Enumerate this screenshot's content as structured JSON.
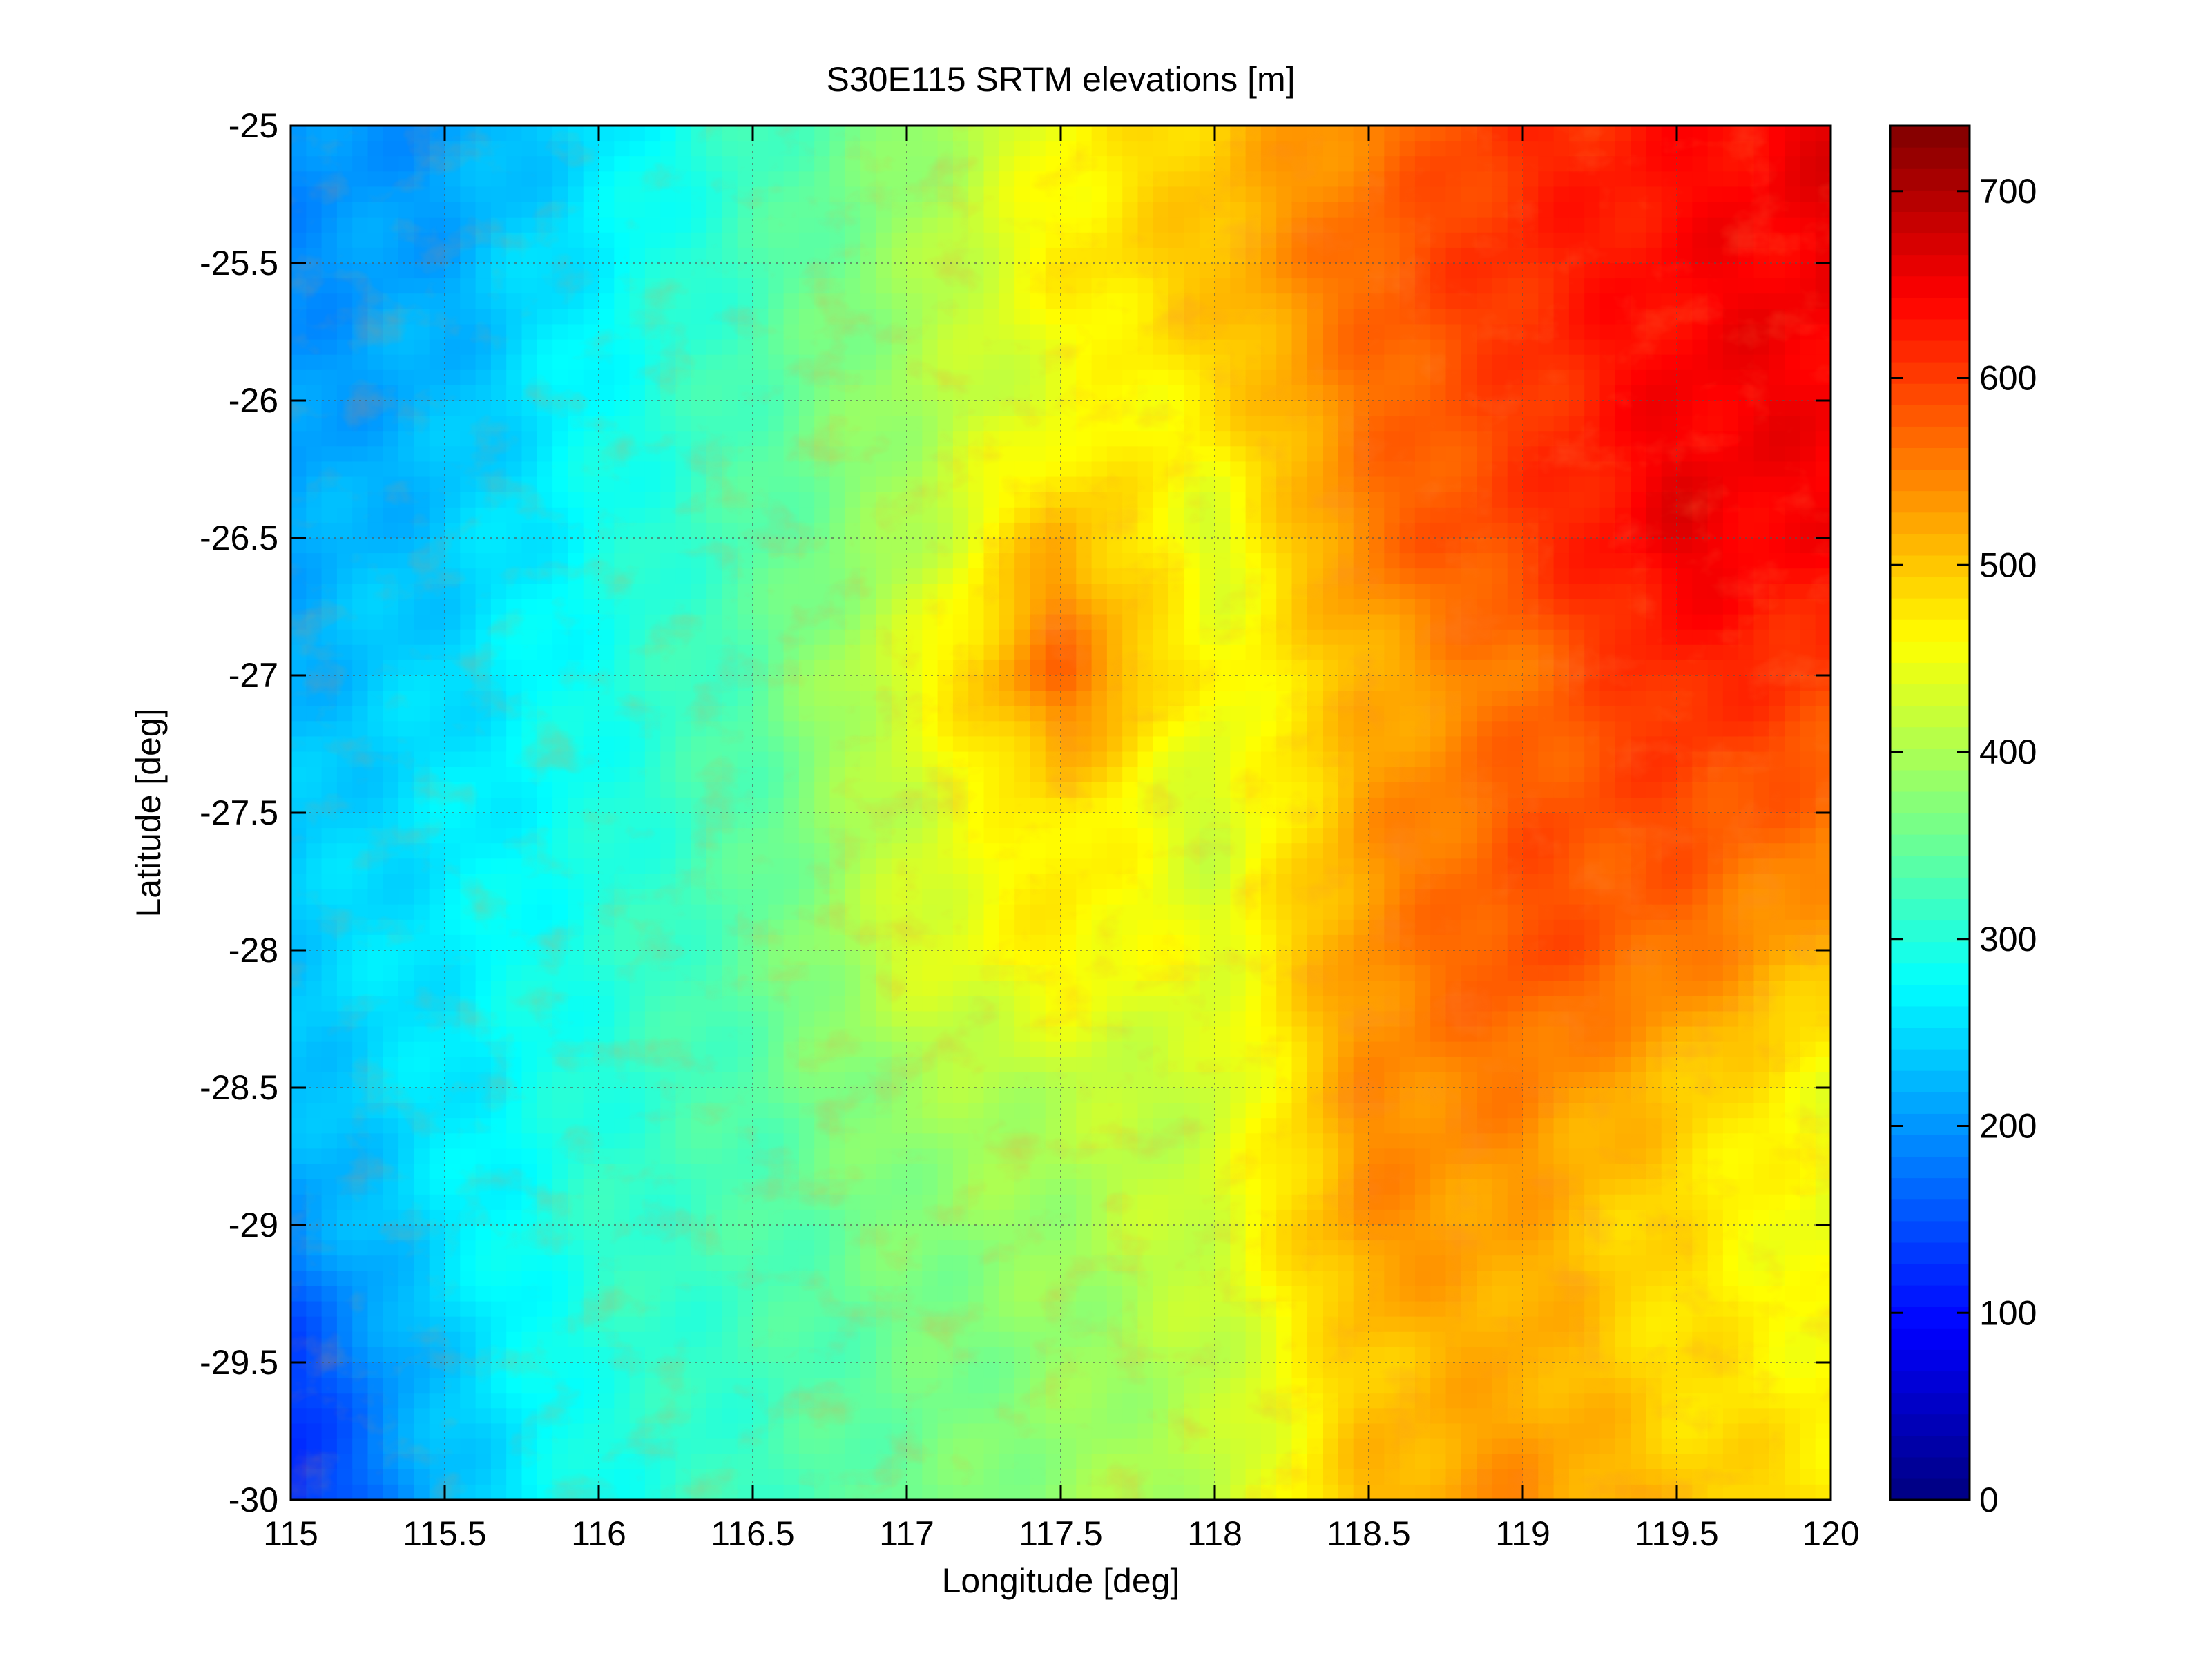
{
  "chart_data": {
    "type": "heatmap",
    "title": "S30E115 SRTM elevations [m]",
    "xlabel": "Longitude [deg]",
    "ylabel": "Latitude [deg]",
    "xlim": [
      115,
      120
    ],
    "ylim": [
      -30,
      -25
    ],
    "x_ticks": [
      "115",
      "115.5",
      "116",
      "116.5",
      "117",
      "117.5",
      "118",
      "118.5",
      "119",
      "119.5",
      "120"
    ],
    "x_tick_values": [
      115,
      115.5,
      116,
      116.5,
      117,
      117.5,
      118,
      118.5,
      119,
      119.5,
      120
    ],
    "y_ticks": [
      "-25",
      "-25.5",
      "-26",
      "-26.5",
      "-27",
      "-27.5",
      "-28",
      "-28.5",
      "-29",
      "-29.5",
      "-30"
    ],
    "y_tick_values": [
      -25,
      -25.5,
      -26,
      -26.5,
      -27,
      -27.5,
      -28,
      -28.5,
      -29,
      -29.5,
      -30
    ],
    "grid": true,
    "colormap": "jet",
    "colorbar": {
      "min": 0,
      "max": 735,
      "ticks": [
        "0",
        "100",
        "200",
        "300",
        "400",
        "500",
        "600",
        "700"
      ],
      "tick_values": [
        0,
        100,
        200,
        300,
        400,
        500,
        600,
        700
      ],
      "placement": "right"
    },
    "elevation_grid": {
      "lon": [
        115,
        115.5,
        116,
        116.5,
        117,
        117.5,
        118,
        118.5,
        119,
        119.5,
        120
      ],
      "lat": [
        -25,
        -25.5,
        -26,
        -26.5,
        -27,
        -27.5,
        -28,
        -28.5,
        -29,
        -29.5,
        -30
      ],
      "values": [
        [
          195,
          205,
          255,
          320,
          375,
          455,
          500,
          550,
          610,
          630,
          660
        ],
        [
          195,
          215,
          270,
          325,
          390,
          470,
          505,
          575,
          615,
          640,
          655
        ],
        [
          200,
          225,
          280,
          335,
          395,
          440,
          480,
          560,
          600,
          650,
          650
        ],
        [
          215,
          235,
          285,
          335,
          395,
          520,
          430,
          560,
          600,
          660,
          640
        ],
        [
          220,
          250,
          290,
          340,
          440,
          570,
          450,
          510,
          560,
          620,
          600
        ],
        [
          235,
          260,
          290,
          340,
          420,
          480,
          420,
          530,
          580,
          590,
          560
        ],
        [
          240,
          265,
          300,
          345,
          430,
          470,
          440,
          540,
          590,
          560,
          510
        ],
        [
          230,
          260,
          300,
          340,
          390,
          410,
          420,
          540,
          550,
          500,
          450
        ],
        [
          195,
          260,
          310,
          330,
          370,
          390,
          430,
          540,
          520,
          480,
          440
        ],
        [
          135,
          240,
          300,
          320,
          355,
          380,
          410,
          500,
          520,
          480,
          460
        ],
        [
          110,
          230,
          290,
          320,
          355,
          385,
          410,
          510,
          540,
          500,
          480
        ]
      ]
    }
  }
}
